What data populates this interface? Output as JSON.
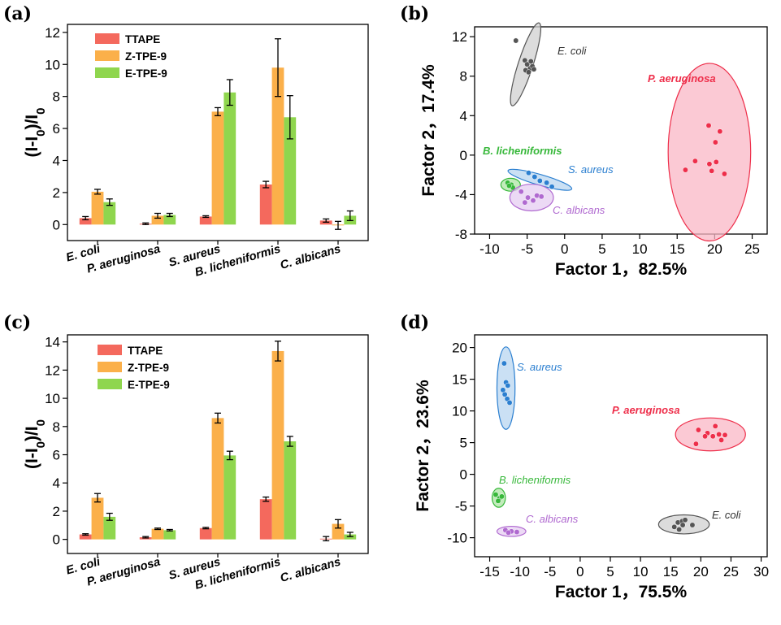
{
  "chart_data": [
    {
      "panel": "(a)",
      "type": "bar",
      "categories": [
        "E. coli",
        "P. aeruginosa",
        "S. aureus",
        "B. licheniformis",
        "C. albicans"
      ],
      "ylabel": "(I-I0)/I0",
      "ylim": [
        -1,
        12.5
      ],
      "yticks": [
        0,
        2,
        4,
        6,
        8,
        10,
        12
      ],
      "legend_placement": "top-left",
      "series": [
        {
          "name": "TTAPE",
          "color": "#f4695d",
          "values": [
            0.4,
            0.05,
            0.5,
            2.5,
            0.25
          ],
          "errors": [
            0.1,
            0.05,
            0.05,
            0.2,
            0.1
          ]
        },
        {
          "name": "Z-TPE-9",
          "color": "#fbb04a",
          "values": [
            2.05,
            0.55,
            7.05,
            9.8,
            -0.05
          ],
          "errors": [
            0.15,
            0.15,
            0.25,
            1.8,
            0.25
          ]
        },
        {
          "name": "E-TPE-9",
          "color": "#8fd64e",
          "values": [
            1.4,
            0.6,
            8.25,
            6.7,
            0.55
          ],
          "errors": [
            0.2,
            0.1,
            0.8,
            1.35,
            0.3
          ]
        }
      ]
    },
    {
      "panel": "(b)",
      "type": "scatter",
      "xlabel": "Factor 1，82.5%",
      "ylabel": "Factor 2，17.4%",
      "xlim": [
        -12,
        27
      ],
      "ylim": [
        -8,
        13
      ],
      "xticks": [
        -10,
        -5,
        0,
        5,
        10,
        15,
        20,
        25
      ],
      "yticks": [
        -8,
        -4,
        0,
        4,
        8,
        12
      ],
      "groups": [
        {
          "name": "E. coli",
          "color": "#555555",
          "fill": "#d0d0d0",
          "points": [
            [
              -6.5,
              11.6
            ],
            [
              -5.3,
              9.6
            ],
            [
              -5.0,
              9.2
            ],
            [
              -4.6,
              8.8
            ],
            [
              -4.3,
              9.0
            ],
            [
              -5.2,
              8.6
            ],
            [
              -4.8,
              8.4
            ],
            [
              -4.1,
              8.7
            ],
            [
              -4.5,
              9.5
            ]
          ],
          "ellipse": {
            "cx": -5.2,
            "cy": 9.2,
            "rx": 4.5,
            "ry": 0.95,
            "angle": -72
          }
        },
        {
          "name": "P. aeruginosa",
          "color": "#ee2e4a",
          "fill": "#f9b7c6",
          "points": [
            [
              19.2,
              3.0
            ],
            [
              20.7,
              2.4
            ],
            [
              20.1,
              1.3
            ],
            [
              17.4,
              -0.6
            ],
            [
              19.3,
              -0.9
            ],
            [
              20.2,
              -0.7
            ],
            [
              16.1,
              -1.5
            ],
            [
              19.6,
              -1.6
            ],
            [
              21.3,
              -1.9
            ]
          ],
          "ellipse": {
            "cx": 19.3,
            "cy": 0.3,
            "rx": 5.5,
            "ry": 9.0,
            "angle": 0
          }
        },
        {
          "name": "S. aureus",
          "color": "#2b7fd0",
          "fill": "#b8d6f0",
          "points": [
            [
              -4.8,
              -1.8
            ],
            [
              -4.0,
              -2.2
            ],
            [
              -3.3,
              -2.6
            ],
            [
              -2.4,
              -2.8
            ],
            [
              -1.7,
              -3.2
            ]
          ],
          "ellipse": {
            "cx": -3.3,
            "cy": -2.5,
            "rx": 4.3,
            "ry": 0.55,
            "angle": 16
          }
        },
        {
          "name": "B. licheniformis",
          "color": "#37b83a",
          "fill": "#aee6a4",
          "points": [
            [
              -7.6,
              -2.8
            ],
            [
              -7.1,
              -3.0
            ],
            [
              -6.9,
              -3.3
            ],
            [
              -7.4,
              -3.1
            ]
          ],
          "ellipse": {
            "cx": -7.2,
            "cy": -3.0,
            "rx": 1.3,
            "ry": 0.65,
            "angle": 0
          }
        },
        {
          "name": "C. albicans",
          "color": "#b06ad0",
          "fill": "#e6cdf2",
          "points": [
            [
              -5.8,
              -3.7
            ],
            [
              -4.9,
              -4.3
            ],
            [
              -4.2,
              -4.6
            ],
            [
              -3.7,
              -4.1
            ],
            [
              -3.1,
              -4.2
            ],
            [
              -5.3,
              -4.8
            ]
          ],
          "ellipse": {
            "cx": -4.4,
            "cy": -4.3,
            "rx": 2.9,
            "ry": 1.35,
            "angle": 0
          }
        }
      ]
    },
    {
      "panel": "(c)",
      "type": "bar",
      "categories": [
        "E. coli",
        "P. aeruginosa",
        "S. aureus",
        "B. licheniformis",
        "C. albicans"
      ],
      "ylabel": "(I-I0)/I0",
      "ylim": [
        -1,
        14.5
      ],
      "yticks": [
        0,
        2,
        4,
        6,
        8,
        10,
        12,
        14
      ],
      "legend_placement": "top-left",
      "series": [
        {
          "name": "TTAPE",
          "color": "#f4695d",
          "values": [
            0.35,
            0.15,
            0.8,
            2.85,
            0.05
          ],
          "errors": [
            0.05,
            0.05,
            0.05,
            0.15,
            0.15
          ]
        },
        {
          "name": "Z-TPE-9",
          "color": "#fbb04a",
          "values": [
            2.95,
            0.75,
            8.6,
            13.35,
            1.1
          ],
          "errors": [
            0.3,
            0.05,
            0.35,
            0.7,
            0.3
          ]
        },
        {
          "name": "E-TPE-9",
          "color": "#8fd64e",
          "values": [
            1.6,
            0.65,
            5.95,
            6.95,
            0.35
          ],
          "errors": [
            0.25,
            0.05,
            0.3,
            0.35,
            0.15
          ]
        }
      ]
    },
    {
      "panel": "(d)",
      "type": "scatter",
      "xlabel": "Factor 1，75.5%",
      "ylabel": "Factor 2，23.6%",
      "xlim": [
        -17.5,
        31
      ],
      "ylim": [
        -13,
        22
      ],
      "xticks": [
        -15,
        -10,
        -5,
        0,
        5,
        10,
        15,
        20,
        25,
        30
      ],
      "yticks": [
        -10,
        -5,
        0,
        5,
        10,
        15,
        20
      ],
      "groups": [
        {
          "name": "S. aureus",
          "color": "#2b7fd0",
          "fill": "#b8d6f0",
          "points": [
            [
              -12.6,
              17.5
            ],
            [
              -12.3,
              14.5
            ],
            [
              -12.0,
              14.0
            ],
            [
              -12.8,
              13.3
            ],
            [
              -12.5,
              12.6
            ],
            [
              -12.1,
              11.9
            ],
            [
              -11.7,
              11.3
            ]
          ],
          "ellipse": {
            "cx": -12.3,
            "cy": 13.6,
            "rx": 1.5,
            "ry": 6.5,
            "angle": 0
          }
        },
        {
          "name": "P. aeruginosa",
          "color": "#ee2e4a",
          "fill": "#f9b7c6",
          "points": [
            [
              19.6,
              7.0
            ],
            [
              22.4,
              7.6
            ],
            [
              21.1,
              6.5
            ],
            [
              22.0,
              6.0
            ],
            [
              23.0,
              6.3
            ],
            [
              24.0,
              6.2
            ],
            [
              23.4,
              5.4
            ],
            [
              20.7,
              6.0
            ],
            [
              19.2,
              4.8
            ]
          ],
          "ellipse": {
            "cx": 21.6,
            "cy": 6.3,
            "rx": 5.8,
            "ry": 2.6,
            "angle": 0
          }
        },
        {
          "name": "B. licheniformis",
          "color": "#37b83a",
          "fill": "#aee6a4",
          "points": [
            [
              -14.0,
              -3.2
            ],
            [
              -13.4,
              -3.8
            ],
            [
              -13.0,
              -3.5
            ],
            [
              -13.6,
              -4.2
            ]
          ],
          "ellipse": {
            "cx": -13.5,
            "cy": -3.7,
            "rx": 1.1,
            "ry": 1.5,
            "angle": 0
          }
        },
        {
          "name": "C. albicans",
          "color": "#b06ad0",
          "fill": "#e6cdf2",
          "points": [
            [
              -12.4,
              -8.8
            ],
            [
              -11.4,
              -9.0
            ],
            [
              -10.5,
              -9.1
            ],
            [
              -11.9,
              -9.2
            ]
          ],
          "ellipse": {
            "cx": -11.4,
            "cy": -9.0,
            "rx": 2.4,
            "ry": 0.8,
            "angle": 0
          }
        },
        {
          "name": "E. coli",
          "color": "#555555",
          "fill": "#d0d0d0",
          "points": [
            [
              15.6,
              -8.3
            ],
            [
              16.2,
              -7.6
            ],
            [
              16.9,
              -7.4
            ],
            [
              17.4,
              -7.2
            ],
            [
              17.0,
              -8.0
            ],
            [
              18.6,
              -8.0
            ],
            [
              16.4,
              -8.7
            ]
          ],
          "ellipse": {
            "cx": 17.2,
            "cy": -7.9,
            "rx": 4.2,
            "ry": 1.5,
            "angle": 0
          }
        }
      ]
    }
  ]
}
